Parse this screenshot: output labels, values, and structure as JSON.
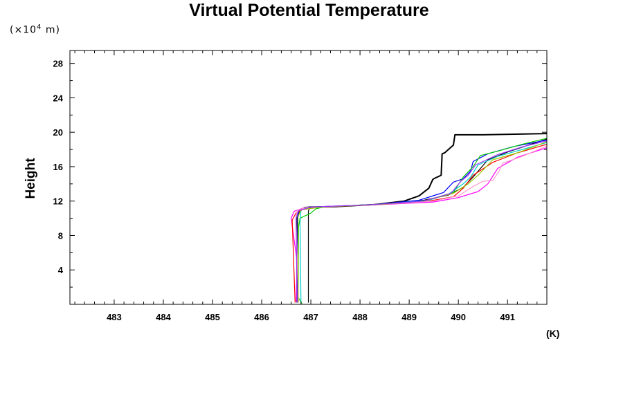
{
  "chart_data": {
    "type": "line",
    "title": "Virtual Potential Temperature",
    "ylabel": "Height",
    "yunit_prefix": "(×10",
    "yunit_exp": "4",
    "yunit_suffix": " m)",
    "xunit": "(K)",
    "xlim": [
      482.1,
      491.8
    ],
    "ylim": [
      0,
      29.5
    ],
    "xticks": [
      "483",
      "484",
      "485",
      "486",
      "487",
      "488",
      "489",
      "490",
      "491"
    ],
    "yticks": [
      "4",
      "8",
      "12",
      "16",
      "20",
      "24",
      "28"
    ],
    "series": [
      {
        "color": "#000000",
        "width": 2,
        "x": [
          486.72,
          486.72,
          486.78,
          486.88,
          487.0,
          487.5,
          488.3,
          488.9,
          489.2,
          489.4,
          489.48,
          489.5,
          489.65,
          489.67,
          489.72,
          489.9,
          489.93,
          490.5,
          491.8
        ],
        "y": [
          0.2,
          10.0,
          10.9,
          11.25,
          11.3,
          11.35,
          11.6,
          12.0,
          12.6,
          13.5,
          14.5,
          14.6,
          15.0,
          17.5,
          17.6,
          18.5,
          19.7,
          19.7,
          19.85
        ]
      },
      {
        "color": "#000000",
        "width": 1.2,
        "x": [
          486.95,
          486.95,
          486.97,
          487.4,
          488.3,
          489.3,
          489.8,
          490.1,
          490.3,
          490.6,
          491.0,
          491.8
        ],
        "y": [
          0.2,
          10.8,
          11.2,
          11.35,
          11.6,
          12.1,
          12.7,
          13.6,
          14.8,
          16.8,
          17.7,
          19.2
        ]
      },
      {
        "color": "#0000ff",
        "width": 1.2,
        "x": [
          486.73,
          486.73,
          486.76,
          487.0,
          488.3,
          489.2,
          489.7,
          489.9,
          490.1,
          490.25,
          490.3,
          490.6,
          491.1,
          491.8
        ],
        "y": [
          0.2,
          10.2,
          11.0,
          11.3,
          11.6,
          12.1,
          13.0,
          14.2,
          14.6,
          15.5,
          16.6,
          17.5,
          18.3,
          19.1
        ]
      },
      {
        "color": "#00cc00",
        "width": 1.2,
        "x": [
          486.82,
          486.74,
          486.75,
          486.78,
          487.0,
          487.1,
          487.3,
          488.3,
          489.3,
          489.9,
          490.1,
          490.3,
          490.45,
          490.8,
          491.3,
          491.8
        ],
        "y": [
          0.1,
          0.8,
          9.0,
          10.0,
          10.6,
          11.1,
          11.35,
          11.6,
          12.0,
          13.0,
          14.8,
          16.0,
          17.3,
          17.8,
          18.6,
          19.3
        ]
      },
      {
        "color": "#ff00ff",
        "width": 1.2,
        "x": [
          486.7,
          486.72,
          486.6,
          486.66,
          486.85,
          487.2,
          488.3,
          489.5,
          490.0,
          490.4,
          490.6,
          490.8,
          491.2,
          491.8
        ],
        "y": [
          0.3,
          5.0,
          10.0,
          10.8,
          11.2,
          11.35,
          11.55,
          11.9,
          12.4,
          13.1,
          14.0,
          15.8,
          17.1,
          18.2
        ]
      },
      {
        "color": "#00cccc",
        "width": 1.2,
        "x": [
          486.8,
          486.78,
          486.8,
          486.9,
          487.6,
          488.5,
          489.4,
          489.8,
          490.1,
          490.25,
          490.4,
          490.8,
          491.3,
          491.8
        ],
        "y": [
          0.2,
          9.5,
          10.9,
          11.25,
          11.4,
          11.65,
          12.1,
          12.8,
          14.0,
          14.8,
          16.2,
          17.2,
          18.0,
          18.8
        ]
      },
      {
        "color": "#ff0000",
        "width": 1.2,
        "x": [
          486.68,
          486.62,
          486.7,
          486.82,
          487.2,
          488.4,
          489.4,
          489.9,
          490.1,
          490.3,
          490.7,
          491.2,
          491.8
        ],
        "y": [
          0.2,
          9.8,
          10.6,
          11.0,
          11.3,
          11.6,
          12.0,
          12.5,
          13.5,
          15.0,
          16.5,
          17.6,
          18.6
        ]
      },
      {
        "color": "#ff99cc",
        "width": 1.2,
        "x": [
          486.75,
          486.7,
          486.72,
          486.9,
          487.5,
          488.4,
          489.5,
          490.0,
          490.3,
          490.5,
          490.7,
          490.82,
          490.9,
          491.3,
          491.8
        ],
        "y": [
          0.2,
          10.0,
          10.9,
          11.25,
          11.4,
          11.6,
          12.0,
          12.6,
          13.7,
          14.3,
          14.4,
          15.4,
          16.4,
          17.2,
          18.4
        ]
      },
      {
        "color": "#99cc00",
        "width": 1.2,
        "x": [
          486.74,
          486.74,
          486.8,
          487.3,
          488.4,
          489.3,
          489.9,
          490.2,
          490.4,
          490.7,
          491.2,
          491.8
        ],
        "y": [
          0.2,
          10.2,
          11.0,
          11.35,
          11.6,
          12.0,
          12.9,
          14.0,
          15.0,
          16.8,
          17.6,
          18.9
        ]
      },
      {
        "color": "#9933ff",
        "width": 1.2,
        "x": [
          486.72,
          486.7,
          486.75,
          487.0,
          488.3,
          489.3,
          489.85,
          490.05,
          490.2,
          490.35,
          490.8,
          491.3,
          491.8
        ],
        "y": [
          0.2,
          10.0,
          10.9,
          11.3,
          11.6,
          12.0,
          12.9,
          14.3,
          15.0,
          16.2,
          17.4,
          18.3,
          19.0
        ]
      }
    ]
  }
}
